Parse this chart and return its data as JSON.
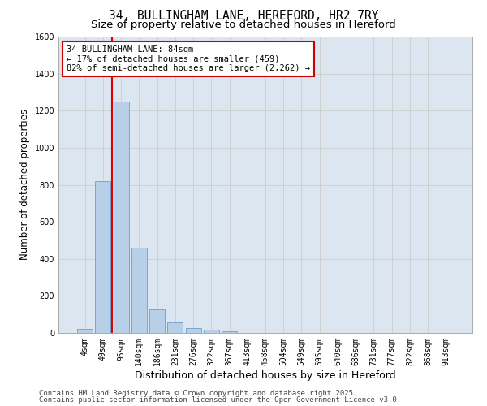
{
  "title_line1": "34, BULLINGHAM LANE, HEREFORD, HR2 7RY",
  "title_line2": "Size of property relative to detached houses in Hereford",
  "xlabel": "Distribution of detached houses by size in Hereford",
  "ylabel": "Number of detached properties",
  "categories": [
    "4sqm",
    "49sqm",
    "95sqm",
    "140sqm",
    "186sqm",
    "231sqm",
    "276sqm",
    "322sqm",
    "367sqm",
    "413sqm",
    "458sqm",
    "504sqm",
    "549sqm",
    "595sqm",
    "640sqm",
    "686sqm",
    "731sqm",
    "777sqm",
    "822sqm",
    "868sqm",
    "913sqm"
  ],
  "values": [
    22,
    820,
    1250,
    460,
    125,
    58,
    28,
    18,
    10,
    0,
    0,
    0,
    0,
    0,
    0,
    0,
    0,
    0,
    0,
    0,
    0
  ],
  "bar_color": "#b8cfe8",
  "bar_edge_color": "#6a9fd0",
  "red_line_color": "#dd0000",
  "red_line_x": 1.5,
  "annotation_text": "34 BULLINGHAM LANE: 84sqm\n← 17% of detached houses are smaller (459)\n82% of semi-detached houses are larger (2,262) →",
  "annotation_box_facecolor": "#ffffff",
  "annotation_box_edgecolor": "#cc0000",
  "ylim": [
    0,
    1600
  ],
  "yticks": [
    0,
    200,
    400,
    600,
    800,
    1000,
    1200,
    1400,
    1600
  ],
  "grid_color": "#cccccc",
  "bg_color": "#dce6f0",
  "footer_line1": "Contains HM Land Registry data © Crown copyright and database right 2025.",
  "footer_line2": "Contains public sector information licensed under the Open Government Licence v3.0.",
  "title_fontsize": 10.5,
  "subtitle_fontsize": 9.5,
  "ylabel_fontsize": 8.5,
  "xlabel_fontsize": 9,
  "tick_fontsize": 7,
  "annotation_fontsize": 7.5,
  "footer_fontsize": 6.5
}
